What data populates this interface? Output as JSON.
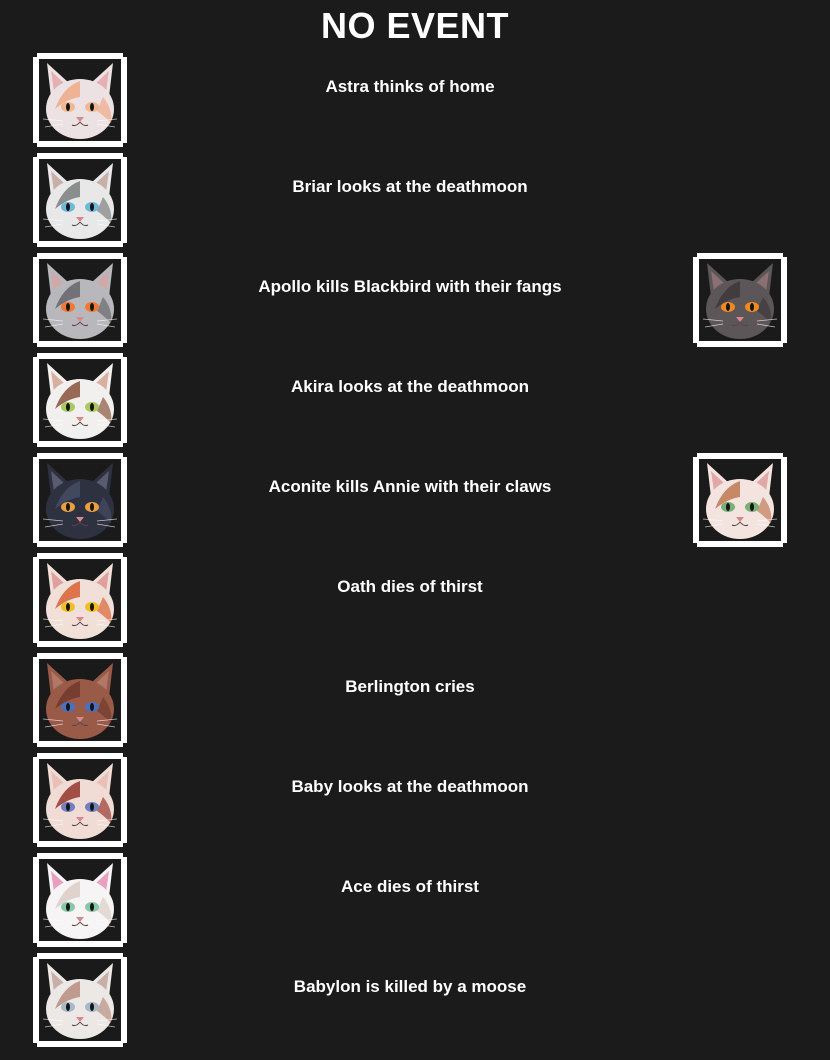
{
  "header": {
    "title": "NO EVENT"
  },
  "events": [
    {
      "text": "Astra thinks of home",
      "cat": {
        "icon": "astra-cat-portrait-icon",
        "fur": "#ece2e4",
        "accent": "#f2a27a",
        "eye": "#f0b890",
        "ear": "#e4b0b4",
        "bg": "#1a1a1a"
      }
    },
    {
      "text": "Briar looks at the deathmoon",
      "cat": {
        "icon": "briar-cat-portrait-icon",
        "fur": "#e8e8e8",
        "accent": "#6c7070",
        "eye": "#6fb8d8",
        "ear": "#c8b0a8",
        "bg": "#1a1a1a"
      }
    },
    {
      "text": "Apollo kills Blackbird with their fangs",
      "cat": {
        "icon": "apollo-cat-portrait-icon",
        "fur": "#b8b8bc",
        "accent": "#5a5a60",
        "eye": "#f07830",
        "ear": "#d0a8a8",
        "bg": "#1a1a1a"
      },
      "victim": {
        "icon": "blackbird-cat-portrait-icon",
        "fur": "#5c5658",
        "accent": "#3a3436",
        "eye": "#f08a20",
        "ear": "#8a7070",
        "bg": "#1a1a1a"
      }
    },
    {
      "text": "Akira looks at the deathmoon",
      "cat": {
        "icon": "akira-cat-portrait-icon",
        "fur": "#f2f0ee",
        "accent": "#7a3e22",
        "eye": "#a8c860",
        "ear": "#d8b0a0",
        "bg": "#1a1a1a"
      }
    },
    {
      "text": "Aconite kills Annie with their claws",
      "cat": {
        "icon": "aconite-cat-portrait-icon",
        "fur": "#2e3140",
        "accent": "#4a5068",
        "eye": "#e8a040",
        "ear": "#5a5a70",
        "bg": "#1a1a1a"
      },
      "victim": {
        "icon": "annie-cat-portrait-icon",
        "fur": "#f4e4e0",
        "accent": "#b86a40",
        "eye": "#78b078",
        "ear": "#e0a8a8",
        "bg": "#1a1a1a"
      }
    },
    {
      "text": "Oath dies of thirst",
      "cat": {
        "icon": "oath-cat-portrait-icon",
        "fur": "#f0e0d8",
        "accent": "#d8501e",
        "eye": "#f0c020",
        "ear": "#e0a0a0",
        "bg": "#1a1a1a"
      }
    },
    {
      "text": "Berlington cries",
      "cat": {
        "icon": "berlington-cat-portrait-icon",
        "fur": "#9a5a48",
        "accent": "#6a3428",
        "eye": "#4a70c0",
        "ear": "#b07868",
        "bg": "#1a1a1a"
      }
    },
    {
      "text": "Baby looks at the deathmoon",
      "cat": {
        "icon": "baby-cat-portrait-icon",
        "fur": "#f0dcd4",
        "accent": "#8a1e18",
        "eye": "#7080c0",
        "ear": "#e8c0b8",
        "bg": "#1a1a1a"
      }
    },
    {
      "text": "Ace dies of thirst",
      "cat": {
        "icon": "ace-cat-portrait-icon",
        "fur": "#f6f4f4",
        "accent": "#d8c8c0",
        "eye": "#88c8a8",
        "ear": "#e8a0c0",
        "bg": "#1a1a1a"
      }
    },
    {
      "text": "Babylon is killed by a moose",
      "cat": {
        "icon": "babylon-cat-portrait-icon",
        "fur": "#ece8e6",
        "accent": "#b08070",
        "eye": "#a8b8c8",
        "ear": "#c8b0a8",
        "bg": "#1a1a1a"
      }
    }
  ]
}
